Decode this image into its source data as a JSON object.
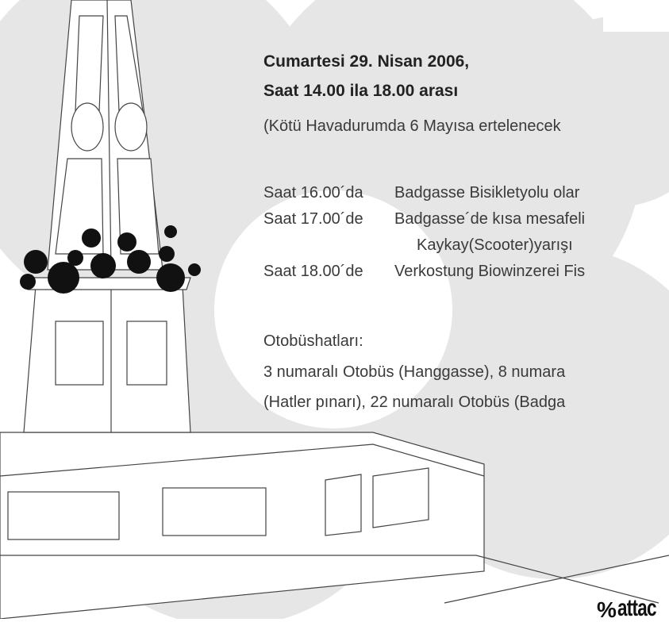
{
  "header": {
    "date": "Cumartesi 29. Nisan 2006,",
    "time": "Saat 14.00 ila 18.00 arası",
    "note": "(Kötü Havadurumda 6 Mayısa ertelenecek"
  },
  "schedule": [
    {
      "time": "Saat 16.00´da",
      "lines": [
        "Badgasse Bisikletyolu  olar"
      ]
    },
    {
      "time": "Saat 17.00´de",
      "lines": [
        "Badgasse´de kısa mesafeli",
        "Kaykay(Scooter)yarışı"
      ]
    },
    {
      "time": "Saat 18.00´de",
      "lines": [
        "Verkostung Biowinzerei Fis"
      ]
    }
  ],
  "transport": {
    "title": "Otobüshatları:",
    "lines": [
      "3 numaralı Otobüs (Hanggasse), 8 numara",
      "(Hatler pınarı), 22 numaralı Otobüs (Badga"
    ]
  },
  "logo": "attac"
}
